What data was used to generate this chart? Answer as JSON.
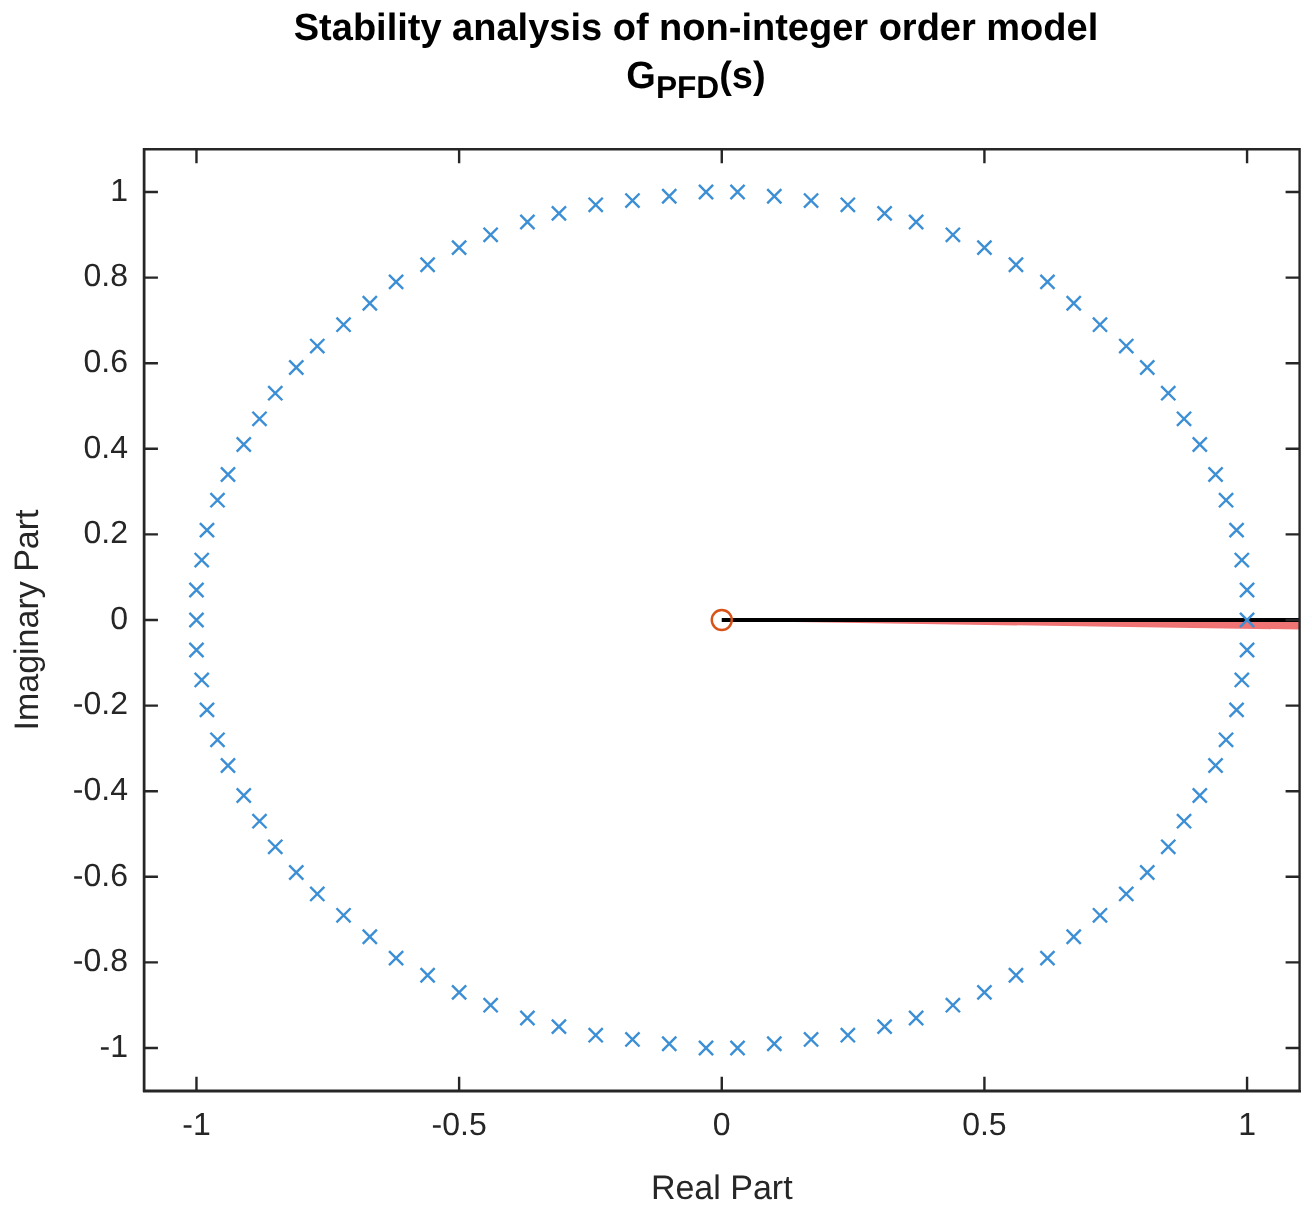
{
  "chart_data": {
    "type": "scatter",
    "title": "Stability analysis of non-integer order model",
    "subtitle": "G$_{PFD}$(s)",
    "xlabel": "Real Part",
    "ylabel": "Imaginary Part",
    "xlim": [
      -1.1,
      1.1
    ],
    "ylim": [
      -1.1,
      1.1
    ],
    "xticks": [
      -1,
      -0.5,
      0,
      0.5,
      1
    ],
    "yticks": [
      -1,
      -0.8,
      -0.6,
      -0.4,
      -0.2,
      0,
      0.2,
      0.4,
      0.6,
      0.8,
      1
    ],
    "grid": false,
    "legend": false,
    "series": [
      {
        "type": "area",
        "color": "#f07474",
        "x": [
          0,
          1.1
        ],
        "values": [
          0,
          -0.02
        ]
      },
      {
        "type": "line",
        "color": "#000000",
        "marker": "none",
        "x": [
          0,
          1.1
        ],
        "values": [
          0,
          0
        ]
      },
      {
        "type": "scatter",
        "color": "#d95319",
        "marker": "circle",
        "x": [
          0
        ],
        "values": [
          0
        ]
      },
      {
        "type": "scatter",
        "color": "#3c8fd4",
        "marker": "cross",
        "x": [
          1,
          1,
          0.99,
          0.98,
          0.96,
          0.94,
          0.91,
          0.88,
          0.85,
          0.81,
          0.77,
          0.72,
          0.67,
          0.62,
          0.56,
          0.5,
          0.44,
          0.37,
          0.31,
          0.24,
          0.17,
          0.1,
          0.03,
          -0.03,
          -0.1,
          -0.17,
          -0.24,
          -0.31,
          -0.37,
          -0.44,
          -0.5,
          -0.56,
          -0.62,
          -0.67,
          -0.72,
          -0.77,
          -0.81,
          -0.85,
          -0.88,
          -0.91,
          -0.94,
          -0.96,
          -0.98,
          -0.99,
          -1,
          -1,
          -1,
          -0.99,
          -0.98,
          -0.96,
          -0.94,
          -0.91,
          -0.88,
          -0.85,
          -0.81,
          -0.77,
          -0.72,
          -0.67,
          -0.62,
          -0.56,
          -0.5,
          -0.44,
          -0.37,
          -0.31,
          -0.24,
          -0.17,
          -0.1,
          -0.03,
          0.03,
          0.1,
          0.17,
          0.24,
          0.31,
          0.37,
          0.44,
          0.5,
          0.56,
          0.62,
          0.67,
          0.72,
          0.77,
          0.81,
          0.85,
          0.88,
          0.91,
          0.94,
          0.96,
          0.98,
          0.99,
          1
        ],
        "values": [
          0,
          0.07,
          0.14,
          0.21,
          0.28,
          0.34,
          0.41,
          0.47,
          0.53,
          0.59,
          0.64,
          0.69,
          0.74,
          0.79,
          0.83,
          0.87,
          0.9,
          0.93,
          0.95,
          0.97,
          0.98,
          0.99,
          1,
          1,
          0.99,
          0.98,
          0.97,
          0.95,
          0.93,
          0.9,
          0.87,
          0.83,
          0.79,
          0.74,
          0.69,
          0.64,
          0.59,
          0.53,
          0.47,
          0.41,
          0.34,
          0.28,
          0.21,
          0.14,
          0.07,
          0,
          -0.07,
          -0.14,
          -0.21,
          -0.28,
          -0.34,
          -0.41,
          -0.47,
          -0.53,
          -0.59,
          -0.64,
          -0.69,
          -0.74,
          -0.79,
          -0.83,
          -0.87,
          -0.9,
          -0.93,
          -0.95,
          -0.97,
          -0.98,
          -0.99,
          -1,
          -1,
          -0.99,
          -0.98,
          -0.97,
          -0.95,
          -0.93,
          -0.9,
          -0.87,
          -0.83,
          -0.79,
          -0.74,
          -0.69,
          -0.64,
          -0.59,
          -0.53,
          -0.47,
          -0.41,
          -0.34,
          -0.28,
          -0.21,
          -0.14,
          -0.07
        ]
      }
    ]
  }
}
